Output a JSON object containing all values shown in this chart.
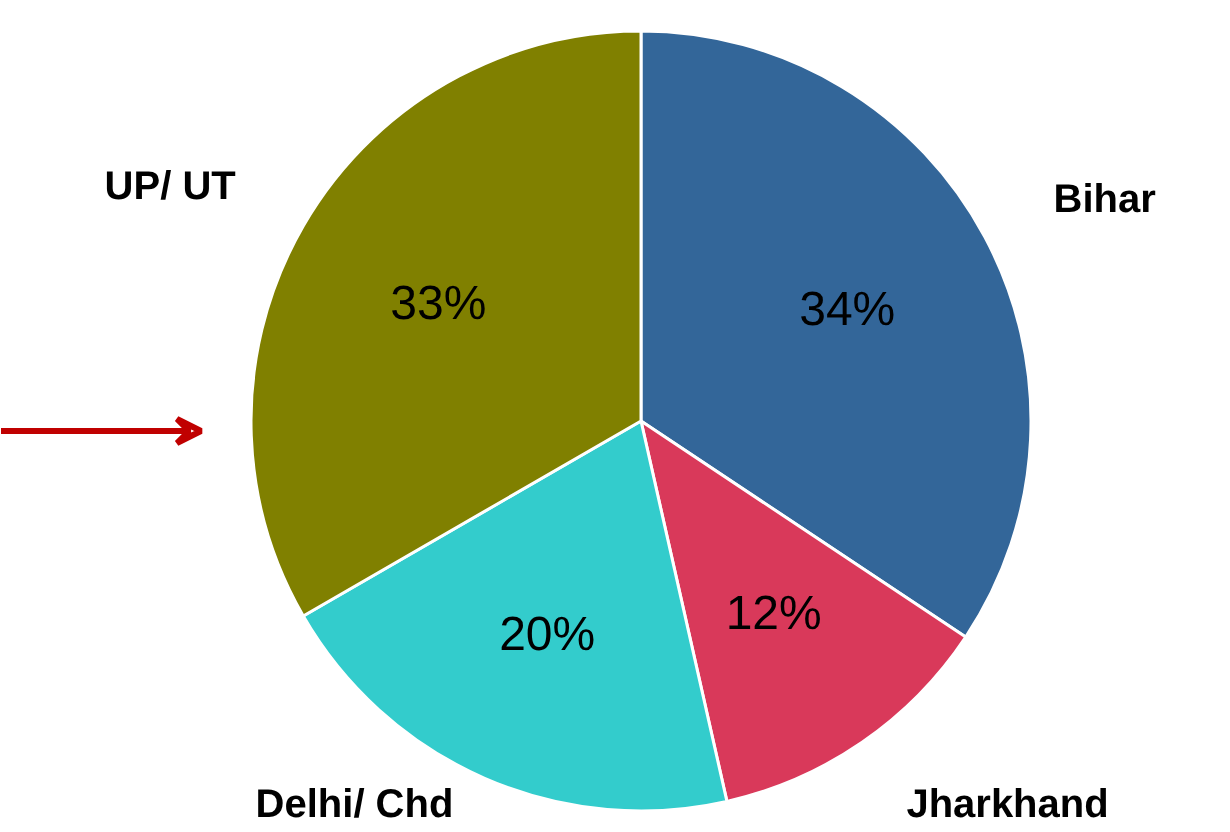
{
  "chart_data": {
    "type": "pie",
    "categories": [
      "Bihar",
      "Jharkhand",
      "Delhi/ Chd",
      "UP/ UT"
    ],
    "values": [
      34,
      12,
      20,
      33
    ],
    "colors": [
      "#336699",
      "#d9395a",
      "#33cccc",
      "#808000"
    ],
    "value_labels": [
      "34%",
      "12%",
      "20%",
      "33%"
    ]
  }
}
